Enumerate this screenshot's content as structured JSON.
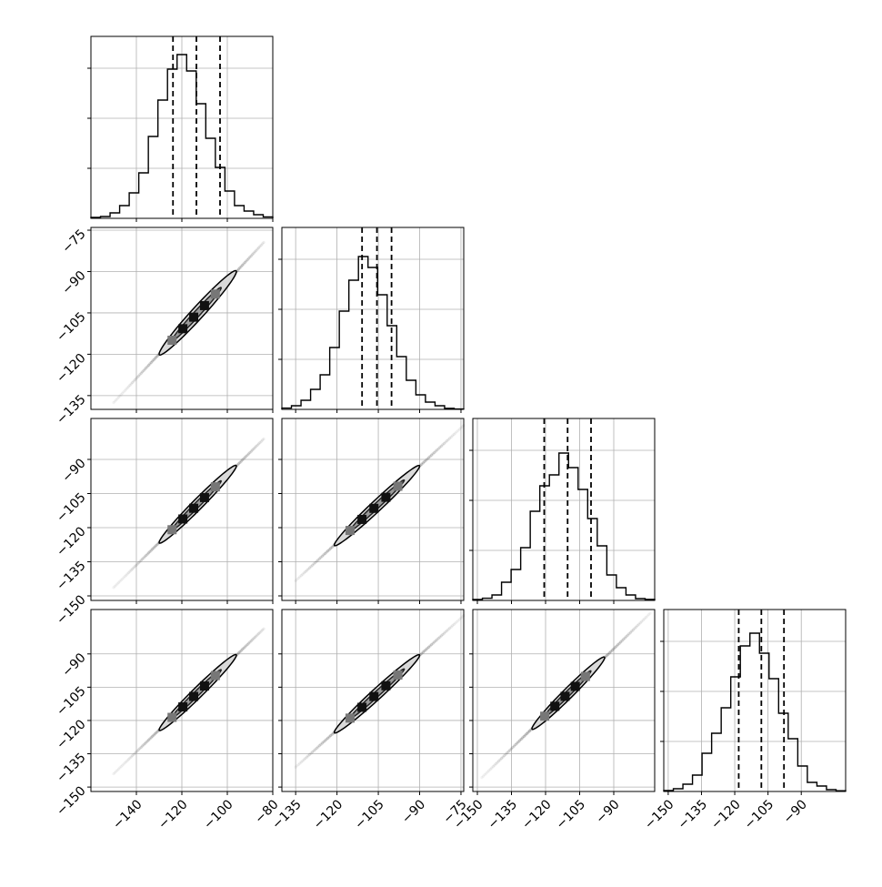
{
  "chart_data": {
    "type": "corner",
    "n_params": 4,
    "style": {
      "line_color": "#000000",
      "grid_color": "#b0b0b0",
      "fill_color": "#d9d9d9",
      "background": "#ffffff"
    },
    "axis_ranges": [
      [
        -160,
        -80
      ],
      [
        -140,
        -74
      ],
      [
        -152,
        -72
      ],
      [
        -152,
        -70
      ]
    ],
    "x_ticks": [
      [
        -140,
        -120,
        -100,
        -80
      ],
      [
        -135,
        -120,
        -105,
        -90,
        -75
      ],
      [
        -150,
        -135,
        -120,
        -105,
        -90
      ],
      [
        -150,
        -135,
        -120,
        -105,
        -90
      ]
    ],
    "y_ticks": [
      null,
      [
        -75,
        -90,
        -105,
        -120,
        -135
      ],
      [
        -90,
        -105,
        -120,
        -135,
        -150
      ],
      [
        -90,
        -105,
        -120,
        -135,
        -150
      ]
    ],
    "tick_labels": {
      "x": [
        [
          "−140",
          "−120",
          "−100",
          "−80"
        ],
        [
          "−135",
          "−120",
          "−105",
          "−90",
          "−75"
        ],
        [
          "−150",
          "−135",
          "−120",
          "−105",
          "−90"
        ],
        [
          "−150",
          "−135",
          "−120",
          "−105",
          "−90"
        ]
      ],
      "y": [
        [],
        [
          "−75",
          "−90",
          "−105",
          "−120",
          "−135"
        ],
        [
          "−90",
          "−105",
          "−120",
          "−135",
          "−150"
        ],
        [
          "−90",
          "−105",
          "−120",
          "−135",
          "−150"
        ]
      ]
    },
    "quantiles": [
      [
        -123.9,
        -113.6,
        -103.2
      ],
      [
        -110.9,
        -105.5,
        -100.2
      ],
      [
        -120.6,
        -110.3,
        -100.0
      ],
      [
        -118.2,
        -108.0,
        -97.8
      ]
    ],
    "histograms": [
      [
        0.005,
        0.01,
        0.03,
        0.07,
        0.14,
        0.25,
        0.45,
        0.65,
        0.82,
        0.9,
        0.81,
        0.63,
        0.44,
        0.28,
        0.15,
        0.07,
        0.04,
        0.02,
        0.008
      ],
      [
        0.007,
        0.02,
        0.05,
        0.11,
        0.19,
        0.34,
        0.54,
        0.71,
        0.84,
        0.78,
        0.63,
        0.46,
        0.29,
        0.16,
        0.08,
        0.04,
        0.02,
        0.006,
        0.002
      ],
      [
        0.005,
        0.012,
        0.03,
        0.1,
        0.17,
        0.29,
        0.49,
        0.63,
        0.69,
        0.81,
        0.73,
        0.61,
        0.45,
        0.3,
        0.14,
        0.07,
        0.03,
        0.01,
        0.006
      ],
      [
        0.005,
        0.015,
        0.04,
        0.09,
        0.21,
        0.32,
        0.46,
        0.63,
        0.8,
        0.87,
        0.76,
        0.62,
        0.43,
        0.29,
        0.14,
        0.05,
        0.03,
        0.01,
        0.004
      ]
    ],
    "scatter_panels": [
      {
        "row": 1,
        "col": 0,
        "x_mean": -113.6,
        "y_mean": -105.5,
        "slope": 0.88,
        "x_range": [
          -150,
          -84
        ],
        "contour_x": [
          -130,
          -96
        ]
      },
      {
        "row": 2,
        "col": 0,
        "x_mean": -113.6,
        "y_mean": -110.3,
        "slope": 0.99,
        "x_range": [
          -150,
          -84
        ],
        "contour_x": [
          -130,
          -96
        ]
      },
      {
        "row": 2,
        "col": 1,
        "x_mean": -105.5,
        "y_mean": -110.3,
        "slope": 1.12,
        "x_range": [
          -135,
          -74
        ],
        "contour_x": [
          -121,
          -90
        ]
      },
      {
        "row": 3,
        "col": 0,
        "x_mean": -113.6,
        "y_mean": -108.0,
        "slope": 0.99,
        "x_range": [
          -150,
          -84
        ],
        "contour_x": [
          -130,
          -96
        ]
      },
      {
        "row": 3,
        "col": 1,
        "x_mean": -105.5,
        "y_mean": -108.0,
        "slope": 1.12,
        "x_range": [
          -135,
          -74
        ],
        "contour_x": [
          -121,
          -90
        ]
      },
      {
        "row": 3,
        "col": 2,
        "x_mean": -110.3,
        "y_mean": -108.0,
        "slope": 1.0,
        "x_range": [
          -148,
          -74
        ],
        "contour_x": [
          -126,
          -94
        ]
      }
    ]
  }
}
